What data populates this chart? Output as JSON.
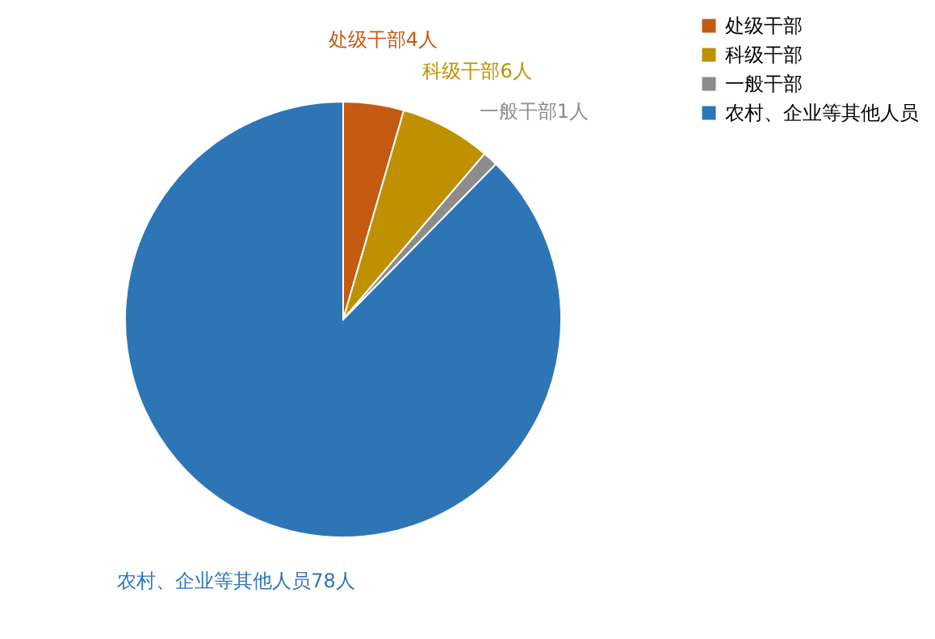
{
  "chart_data": {
    "type": "pie",
    "categories": [
      "处级干部",
      "科级干部",
      "一般干部",
      "农村、企业等其他人员"
    ],
    "values": [
      4,
      6,
      1,
      78
    ],
    "colors": [
      "#c55a11",
      "#bf9000",
      "#8c8c8c",
      "#2e75b6"
    ],
    "value_labels": [
      "处级干部4人",
      "科级干部6人",
      "一般干部1人",
      "农村、企业等其他人员78人"
    ],
    "legend": "right"
  }
}
